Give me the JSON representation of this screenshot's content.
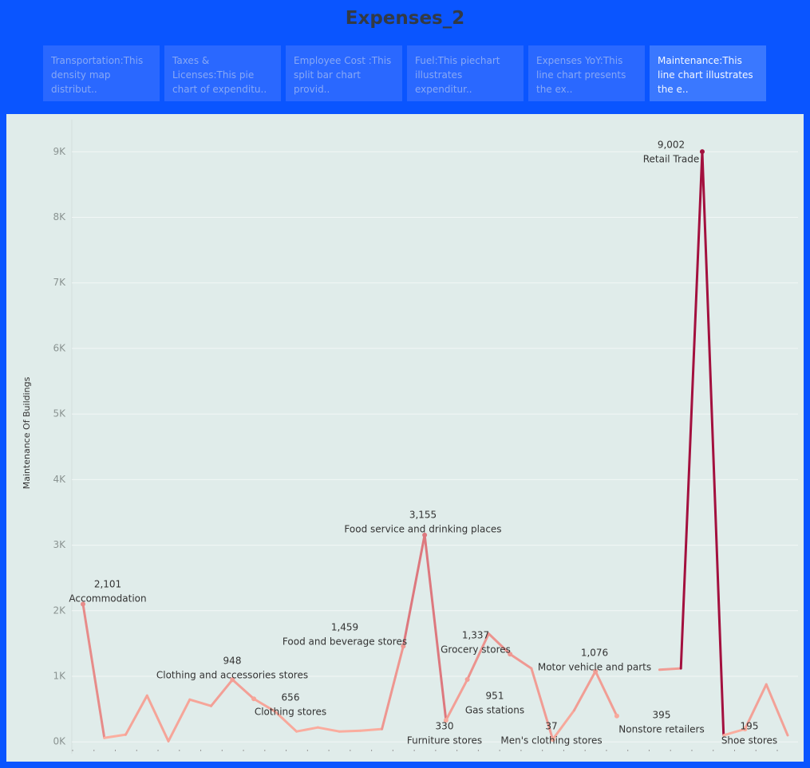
{
  "title": "Expenses_2",
  "tabs": [
    "Transportation:This density map distribut..",
    "Taxes & Licenses:This pie chart of expenditu..",
    "Employee Cost :This split  bar chart provid..",
    "Fuel:This piechart illustrates expenditur..",
    "Expenses YoY:This line chart presents the ex..",
    "Maintenance:This line chart illustrates the e.."
  ],
  "active_tab": 5,
  "chart_data": {
    "type": "line",
    "y_label": "Maintenance Of Buildings",
    "categories": [
      "Accommodation",
      null,
      null,
      null,
      null,
      null,
      null,
      "Clothing and accessories stores",
      "Clothing stores",
      null,
      null,
      null,
      null,
      null,
      null,
      "Food and beverage stores",
      "Food service and drinking places",
      "Furniture stores",
      "Gas stations",
      null,
      "Grocery stores",
      null,
      "Men's clothing stores",
      null,
      "Motor vehicle and parts",
      "Nonstore retailers",
      null,
      null,
      null,
      "Retail Trade",
      null,
      "Shoe stores",
      null,
      null
    ],
    "values": [
      2101,
      60,
      110,
      705,
      10,
      645,
      547,
      948,
      656,
      462,
      158,
      219,
      158,
      170,
      195,
      1459,
      3155,
      330,
      951,
      1650,
      1337,
      1120,
      37,
      480,
      1076,
      395,
      null,
      1100,
      1120,
      9002,
      100,
      195,
      876,
      100
    ],
    "value_labels": [
      "2,101",
      null,
      null,
      null,
      null,
      null,
      null,
      "948",
      "656",
      null,
      null,
      null,
      null,
      null,
      null,
      "1,459",
      "3,155",
      "330",
      "951",
      null,
      "1,337",
      null,
      "37",
      null,
      "1,076",
      "395",
      null,
      null,
      null,
      "9,002",
      null,
      "195",
      null,
      null
    ],
    "color_range": [
      "#fcb0a0",
      "#a3103e"
    ],
    "ylim": [
      -180,
      9490
    ],
    "yticks": [
      {
        "value": 0,
        "label": "0K"
      },
      {
        "value": 1000,
        "label": "1K"
      },
      {
        "value": 2000,
        "label": "2K"
      },
      {
        "value": 3000,
        "label": "3K"
      },
      {
        "value": 4000,
        "label": "4K"
      },
      {
        "value": 5000,
        "label": "5K"
      },
      {
        "value": 6000,
        "label": "6K"
      },
      {
        "value": 7000,
        "label": "7K"
      },
      {
        "value": 8000,
        "label": "8K"
      },
      {
        "value": 9000,
        "label": "9K"
      }
    ],
    "grid": true
  }
}
